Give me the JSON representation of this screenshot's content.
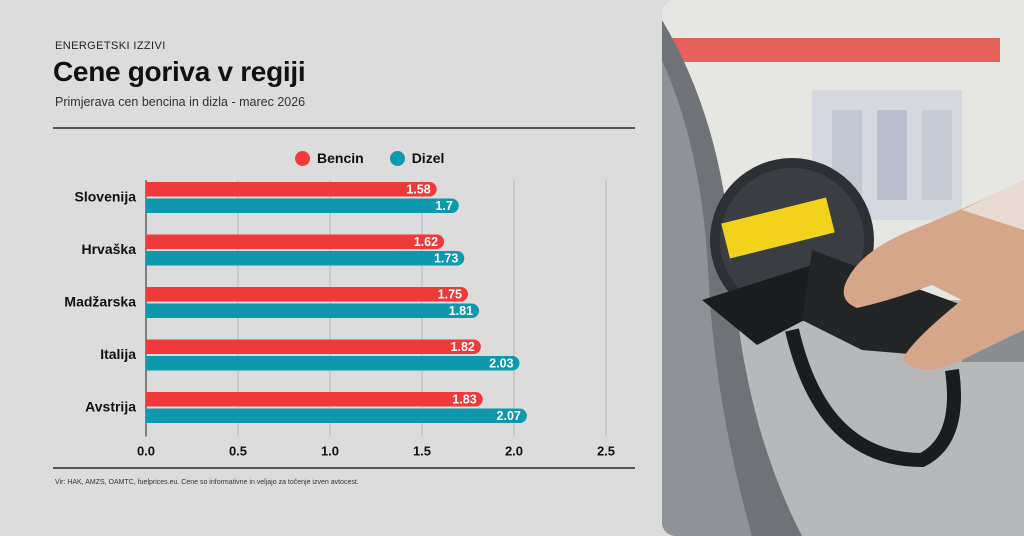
{
  "header": {
    "kicker": "ENERGETSKI IZZIVI",
    "title": "Cene goriva v regiji",
    "subtitle": "Primjerava cen bencina in dizla - marec 2026"
  },
  "legend": [
    {
      "label": "Bencin",
      "color": "#f03a3a"
    },
    {
      "label": "Dizel",
      "color": "#0e98ae"
    }
  ],
  "chart_data": {
    "type": "bar",
    "orientation": "horizontal",
    "categories": [
      "Slovenija",
      "Hrvaška",
      "Madžarska",
      "Italija",
      "Avstrija"
    ],
    "series": [
      {
        "name": "Bencin",
        "color": "#f03a3a",
        "values": [
          1.58,
          1.62,
          1.75,
          1.82,
          1.83
        ],
        "labels": [
          "1.58",
          "1.62",
          "1.75",
          "1.82",
          "1.83"
        ]
      },
      {
        "name": "Dizel",
        "color": "#0e98ae",
        "values": [
          1.7,
          1.73,
          1.81,
          2.03,
          2.07
        ],
        "labels": [
          "1.7",
          "1.73",
          "1.81",
          "2.03",
          "2.07"
        ]
      }
    ],
    "xlim": [
      0,
      2.5
    ],
    "xticks": [
      "0.0",
      "0.5",
      "1.0",
      "1.5",
      "2.0",
      "2.5"
    ],
    "grid": true,
    "legend_position": "top"
  },
  "footer": {
    "source": "Vir: HAK, AMZS, OAMTC, fuelprices.eu. Cene so informativne in veljajo za točenje izven avtocest."
  },
  "photo": {
    "description_icon": "fuel-nozzle-photo"
  }
}
